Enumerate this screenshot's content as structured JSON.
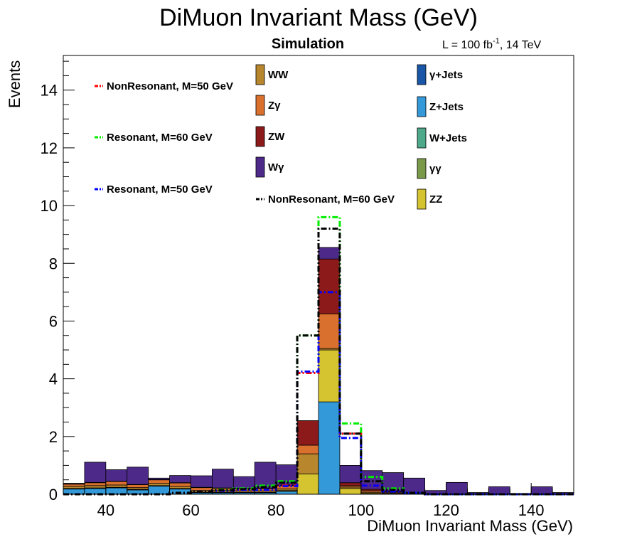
{
  "chart_data": {
    "type": "bar",
    "title": "DiMuon Invariant Mass (GeV)",
    "xlabel": "DiMuon Invariant Mass (GeV)",
    "ylabel": "Events",
    "label_simulation": "Simulation",
    "lumi_label": {
      "prefix": "L = 100 fb",
      "exponent": "-1",
      "suffix": ", 14 TeV"
    },
    "xlim": [
      30,
      150
    ],
    "ylim": [
      0,
      15.2
    ],
    "x_ticks": [
      "40",
      "60",
      "80",
      "100",
      "120",
      "140"
    ],
    "y_ticks": [
      "0",
      "2",
      "4",
      "6",
      "8",
      "10",
      "12",
      "14"
    ],
    "bin_edges": [
      30,
      35,
      40,
      45,
      50,
      55,
      60,
      65,
      70,
      75,
      80,
      85,
      90,
      95,
      100,
      105,
      110,
      115,
      120,
      125,
      130,
      135,
      140,
      145,
      150
    ],
    "stack_series": [
      {
        "name": "Z+Jets",
        "color": "#3399d8",
        "values": [
          0.18,
          0.2,
          0.22,
          0.15,
          0.28,
          0.18,
          0.05,
          0.05,
          0.05,
          0.05,
          0.1,
          0,
          3.2,
          0,
          0,
          0,
          0,
          0,
          0,
          0,
          0,
          0,
          0,
          0
        ]
      },
      {
        "name": "ZZ",
        "color": "#d6c330",
        "values": [
          0.02,
          0.02,
          0.02,
          0.02,
          0.02,
          0.02,
          0.02,
          0.02,
          0.02,
          0.02,
          0.03,
          0.7,
          1.8,
          0.2,
          0.03,
          0.02,
          0.01,
          0.01,
          0,
          0,
          0,
          0,
          0,
          0
        ]
      },
      {
        "name": "WW",
        "color": "#b8862c",
        "values": [
          0.07,
          0.08,
          0.08,
          0.06,
          0.08,
          0.07,
          0.06,
          0.06,
          0.05,
          0.05,
          0.05,
          0.7,
          0.05,
          0.05,
          0.04,
          0.03,
          0.02,
          0.01,
          0.01,
          0.01,
          0.01,
          0.01,
          0.01,
          0.01
        ]
      },
      {
        "name": "Zγ",
        "color": "#d9702e",
        "values": [
          0.08,
          0.1,
          0.12,
          0.1,
          0.12,
          0.12,
          0.1,
          0.08,
          0.08,
          0.08,
          0.12,
          0.3,
          1.2,
          0.05,
          0.05,
          0.03,
          0.02,
          0.01,
          0,
          0,
          0,
          0,
          0,
          0
        ]
      },
      {
        "name": "ZW",
        "color": "#8c1a1a",
        "values": [
          0.01,
          0.01,
          0.01,
          0.01,
          0.01,
          0.01,
          0.01,
          0.01,
          0.01,
          0.01,
          0.02,
          0.85,
          1.9,
          0.1,
          0.05,
          0.02,
          0.01,
          0,
          0,
          0,
          0,
          0,
          0,
          0
        ]
      },
      {
        "name": "Wγ",
        "color": "#4d2a8a",
        "values": [
          0.02,
          0.7,
          0.4,
          0.6,
          0.05,
          0.25,
          0.4,
          0.65,
          0.4,
          0.9,
          0.7,
          0,
          0.4,
          0.6,
          0.65,
          0.65,
          0.5,
          0.1,
          0.4,
          0.05,
          0.25,
          0.02,
          0.25,
          0.05
        ]
      }
    ],
    "overlay_series": [
      {
        "name": "NonResonant, M=50 GeV",
        "color": "#ff0000",
        "values": [
          0,
          0,
          0,
          0,
          0,
          0.05,
          0.1,
          0.12,
          0.15,
          0.15,
          0.3,
          4.2,
          7.0,
          2.1,
          0.3,
          0.1,
          0.05,
          0,
          0,
          0,
          0,
          0,
          0,
          0
        ]
      },
      {
        "name": "Resonant, M=60 GeV",
        "color": "#00ee00",
        "values": [
          0,
          0,
          0,
          0,
          0,
          0.05,
          0.1,
          0.15,
          0.2,
          0.3,
          0.45,
          5.5,
          9.6,
          2.45,
          0.6,
          0.2,
          0.05,
          0,
          0,
          0,
          0,
          0,
          0,
          0
        ]
      },
      {
        "name": "Resonant, M=50 GeV",
        "color": "#0000ff",
        "values": [
          0,
          0,
          0,
          0,
          0,
          0.05,
          0.1,
          0.12,
          0.15,
          0.15,
          0.28,
          4.25,
          7.0,
          1.95,
          0.3,
          0.1,
          0.05,
          0,
          0,
          0,
          0,
          0,
          0,
          0
        ]
      },
      {
        "name": "NonResonant, M=60 GeV",
        "color": "#000000",
        "values": [
          0,
          0,
          0,
          0,
          0,
          0.05,
          0.1,
          0.14,
          0.18,
          0.25,
          0.4,
          5.5,
          9.2,
          2.1,
          0.45,
          0.15,
          0.05,
          0,
          0,
          0,
          0,
          0,
          0,
          0
        ]
      }
    ],
    "legend_entries": [
      {
        "label": "NonResonant, M=50 GeV",
        "color": "#ff0000",
        "kind": "line"
      },
      {
        "label": "Resonant, M=60 GeV",
        "color": "#00ee00",
        "kind": "line"
      },
      {
        "label": "Resonant, M=50 GeV",
        "color": "#0000ff",
        "kind": "line"
      },
      {
        "label": "WW",
        "color": "#b8862c",
        "kind": "box"
      },
      {
        "label": "Zγ",
        "color": "#d9702e",
        "kind": "box"
      },
      {
        "label": "ZW",
        "color": "#8c1a1a",
        "kind": "box"
      },
      {
        "label": "Wγ",
        "color": "#4d2a8a",
        "kind": "box"
      },
      {
        "label": "NonResonant, M=60 GeV",
        "color": "#000000",
        "kind": "line"
      },
      {
        "label": "γ+Jets",
        "color": "#1a56a8",
        "kind": "box"
      },
      {
        "label": "Z+Jets",
        "color": "#3399d8",
        "kind": "box"
      },
      {
        "label": "W+Jets",
        "color": "#4ea88a",
        "kind": "box"
      },
      {
        "label": "γγ",
        "color": "#7a9a4a",
        "kind": "box"
      },
      {
        "label": "ZZ",
        "color": "#d6c330",
        "kind": "box"
      }
    ]
  }
}
